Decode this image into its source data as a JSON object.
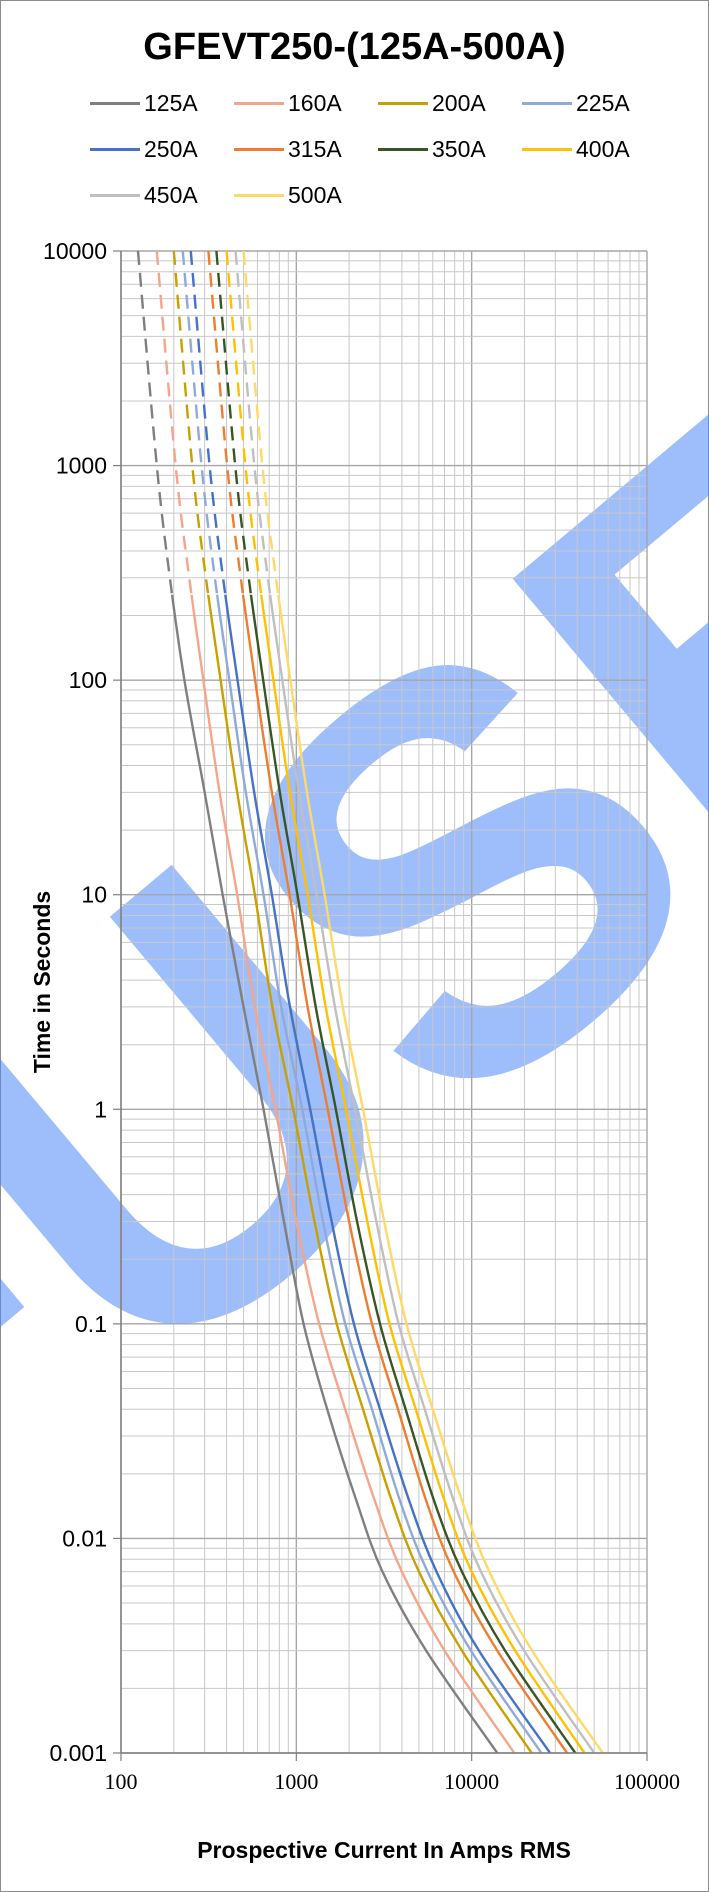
{
  "chart_data": {
    "type": "line",
    "title": "GFEVT250-(125A-500A)",
    "xlabel": "Prospective Current In Amps RMS",
    "ylabel": "Time in Seconds",
    "x_scale": "log",
    "y_scale": "log",
    "xlim": [
      100,
      100000
    ],
    "ylim": [
      0.001,
      10000
    ],
    "x_ticks": [
      "100",
      "1000",
      "10000",
      "100000"
    ],
    "y_ticks": [
      "0.001",
      "0.01",
      "0.1",
      "1",
      "10",
      "100",
      "1000",
      "10000"
    ],
    "grid": true,
    "legend_position": "top",
    "watermark": "FUSE",
    "watermark_color": "#4f86f7",
    "series": [
      {
        "name": "125A",
        "color": "#7f7f7f",
        "dashed_above_s": 250,
        "points": [
          [
            125,
            10000
          ],
          [
            160,
            1000
          ],
          [
            190,
            300
          ],
          [
            230,
            100
          ],
          [
            300,
            30
          ],
          [
            380,
            10
          ],
          [
            500,
            3
          ],
          [
            650,
            1
          ],
          [
            850,
            0.3
          ],
          [
            1100,
            0.1
          ],
          [
            1500,
            0.04
          ],
          [
            2200,
            0.015
          ],
          [
            3100,
            0.007
          ],
          [
            5500,
            0.003
          ],
          [
            14000,
            0.001
          ]
        ]
      },
      {
        "name": "160A",
        "color": "#f4a58a",
        "dashed_above_s": 250,
        "points": [
          [
            160,
            10000
          ],
          [
            205,
            1000
          ],
          [
            245,
            300
          ],
          [
            295,
            100
          ],
          [
            365,
            30
          ],
          [
            460,
            10
          ],
          [
            580,
            3
          ],
          [
            760,
            1
          ],
          [
            1000,
            0.3
          ],
          [
            1350,
            0.1
          ],
          [
            1900,
            0.04
          ],
          [
            2800,
            0.015
          ],
          [
            4000,
            0.007
          ],
          [
            7000,
            0.003
          ],
          [
            17500,
            0.001
          ]
        ]
      },
      {
        "name": "200A",
        "color": "#c8a000",
        "dashed_above_s": 250,
        "points": [
          [
            200,
            10000
          ],
          [
            255,
            1000
          ],
          [
            305,
            300
          ],
          [
            370,
            100
          ],
          [
            460,
            30
          ],
          [
            580,
            10
          ],
          [
            730,
            3
          ],
          [
            960,
            1
          ],
          [
            1270,
            0.3
          ],
          [
            1700,
            0.1
          ],
          [
            2400,
            0.04
          ],
          [
            3500,
            0.015
          ],
          [
            5000,
            0.007
          ],
          [
            8800,
            0.003
          ],
          [
            22000,
            0.001
          ]
        ]
      },
      {
        "name": "225A",
        "color": "#8eaadb",
        "dashed_above_s": 250,
        "points": [
          [
            225,
            10000
          ],
          [
            288,
            1000
          ],
          [
            343,
            300
          ],
          [
            415,
            100
          ],
          [
            515,
            30
          ],
          [
            650,
            10
          ],
          [
            820,
            3
          ],
          [
            1080,
            1
          ],
          [
            1420,
            0.3
          ],
          [
            1900,
            0.1
          ],
          [
            2700,
            0.04
          ],
          [
            3900,
            0.015
          ],
          [
            5600,
            0.007
          ],
          [
            9900,
            0.003
          ],
          [
            25000,
            0.001
          ]
        ]
      },
      {
        "name": "250A",
        "color": "#4472c4",
        "dashed_above_s": 250,
        "points": [
          [
            250,
            10000
          ],
          [
            320,
            1000
          ],
          [
            382,
            300
          ],
          [
            462,
            100
          ],
          [
            575,
            30
          ],
          [
            725,
            10
          ],
          [
            920,
            3
          ],
          [
            1200,
            1
          ],
          [
            1590,
            0.3
          ],
          [
            2130,
            0.1
          ],
          [
            3000,
            0.04
          ],
          [
            4400,
            0.015
          ],
          [
            6300,
            0.007
          ],
          [
            11000,
            0.003
          ],
          [
            28000,
            0.001
          ]
        ]
      },
      {
        "name": "315A",
        "color": "#ed7d31",
        "dashed_above_s": 250,
        "points": [
          [
            315,
            10000
          ],
          [
            403,
            1000
          ],
          [
            482,
            300
          ],
          [
            582,
            100
          ],
          [
            725,
            30
          ],
          [
            915,
            10
          ],
          [
            1160,
            3
          ],
          [
            1510,
            1
          ],
          [
            2000,
            0.3
          ],
          [
            2700,
            0.1
          ],
          [
            3800,
            0.04
          ],
          [
            5500,
            0.015
          ],
          [
            7900,
            0.007
          ],
          [
            14000,
            0.003
          ],
          [
            35000,
            0.001
          ]
        ]
      },
      {
        "name": "350A",
        "color": "#375623",
        "dashed_above_s": 250,
        "points": [
          [
            350,
            10000
          ],
          [
            448,
            1000
          ],
          [
            535,
            300
          ],
          [
            647,
            100
          ],
          [
            805,
            30
          ],
          [
            1015,
            10
          ],
          [
            1290,
            3
          ],
          [
            1680,
            1
          ],
          [
            2220,
            0.3
          ],
          [
            3000,
            0.1
          ],
          [
            4200,
            0.04
          ],
          [
            6100,
            0.015
          ],
          [
            8800,
            0.007
          ],
          [
            15500,
            0.003
          ],
          [
            39000,
            0.001
          ]
        ]
      },
      {
        "name": "400A",
        "color": "#ffc000",
        "dashed_above_s": 250,
        "points": [
          [
            400,
            10000
          ],
          [
            512,
            1000
          ],
          [
            612,
            300
          ],
          [
            740,
            100
          ],
          [
            920,
            30
          ],
          [
            1160,
            10
          ],
          [
            1470,
            3
          ],
          [
            1920,
            1
          ],
          [
            2540,
            0.3
          ],
          [
            3400,
            0.1
          ],
          [
            4800,
            0.04
          ],
          [
            7000,
            0.015
          ],
          [
            10000,
            0.007
          ],
          [
            17700,
            0.003
          ],
          [
            44000,
            0.001
          ]
        ]
      },
      {
        "name": "450A",
        "color": "#bfbfbf",
        "dashed_above_s": 250,
        "points": [
          [
            450,
            10000
          ],
          [
            576,
            1000
          ],
          [
            688,
            300
          ],
          [
            832,
            100
          ],
          [
            1035,
            30
          ],
          [
            1305,
            10
          ],
          [
            1660,
            3
          ],
          [
            2160,
            1
          ],
          [
            2860,
            0.3
          ],
          [
            3830,
            0.1
          ],
          [
            5400,
            0.04
          ],
          [
            7900,
            0.015
          ],
          [
            11300,
            0.007
          ],
          [
            19900,
            0.003
          ],
          [
            50000,
            0.001
          ]
        ]
      },
      {
        "name": "500A",
        "color": "#ffd966",
        "dashed_above_s": 250,
        "points": [
          [
            500,
            10000
          ],
          [
            640,
            1000
          ],
          [
            765,
            300
          ],
          [
            925,
            100
          ],
          [
            1150,
            30
          ],
          [
            1450,
            10
          ],
          [
            1840,
            3
          ],
          [
            2400,
            1
          ],
          [
            3170,
            0.3
          ],
          [
            4250,
            0.1
          ],
          [
            6000,
            0.04
          ],
          [
            8800,
            0.015
          ],
          [
            12600,
            0.007
          ],
          [
            22100,
            0.003
          ],
          [
            56000,
            0.001
          ]
        ]
      }
    ]
  }
}
